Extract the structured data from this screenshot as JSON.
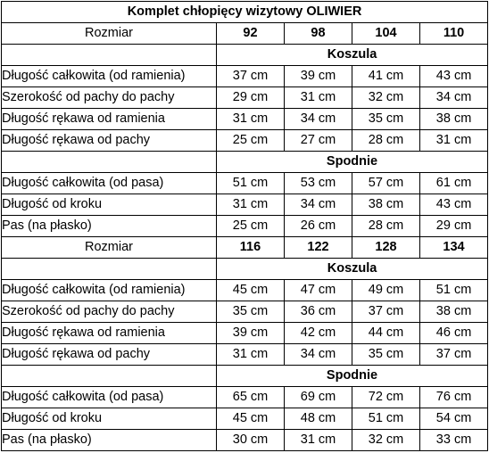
{
  "title": "Komplet chłopięcy wizytowy OLIWIER",
  "blocks": [
    {
      "size_label": "Rozmiar",
      "sizes": [
        "92",
        "98",
        "104",
        "110"
      ],
      "sections": [
        {
          "heading": "Koszula",
          "rows": [
            {
              "label": "Długość całkowita (od ramienia)",
              "values": [
                "37 cm",
                "39 cm",
                "41 cm",
                "43 cm"
              ]
            },
            {
              "label": "Szerokość od pachy do pachy",
              "values": [
                "29 cm",
                "31 cm",
                "32 cm",
                "34 cm"
              ]
            },
            {
              "label": "Długość rękawa od ramienia",
              "values": [
                "31 cm",
                "34 cm",
                "35 cm",
                "38 cm"
              ]
            },
            {
              "label": "Długość rękawa od pachy",
              "values": [
                "25 cm",
                "27 cm",
                "28 cm",
                "31 cm"
              ]
            }
          ]
        },
        {
          "heading": "Spodnie",
          "rows": [
            {
              "label": "Długość całkowita (od pasa)",
              "values": [
                "51 cm",
                "53 cm",
                "57 cm",
                "61 cm"
              ]
            },
            {
              "label": "Długość od kroku",
              "values": [
                "31 cm",
                "34 cm",
                "38 cm",
                "43 cm"
              ]
            },
            {
              "label": "Pas (na płasko)",
              "values": [
                "25 cm",
                "26 cm",
                "28 cm",
                "29 cm"
              ]
            }
          ]
        }
      ]
    },
    {
      "size_label": "Rozmiar",
      "sizes": [
        "116",
        "122",
        "128",
        "134"
      ],
      "sections": [
        {
          "heading": "Koszula",
          "rows": [
            {
              "label": "Długość całkowita (od ramienia)",
              "values": [
                "45 cm",
                "47 cm",
                "49 cm",
                "51 cm"
              ]
            },
            {
              "label": "Szerokość od pachy do pachy",
              "values": [
                "35 cm",
                "36 cm",
                "37 cm",
                "38 cm"
              ]
            },
            {
              "label": "Długość rękawa od ramienia",
              "values": [
                "39 cm",
                "42 cm",
                "44 cm",
                "46 cm"
              ]
            },
            {
              "label": "Długość rękawa od pachy",
              "values": [
                "31 cm",
                "34 cm",
                "35 cm",
                "37 cm"
              ]
            }
          ]
        },
        {
          "heading": "Spodnie",
          "rows": [
            {
              "label": "Długość całkowita (od pasa)",
              "values": [
                "65 cm",
                "69 cm",
                "72 cm",
                "76 cm"
              ]
            },
            {
              "label": "Długość od kroku",
              "values": [
                "45 cm",
                "48 cm",
                "51 cm",
                "54 cm"
              ]
            },
            {
              "label": "Pas (na płasko)",
              "values": [
                "30 cm",
                "31 cm",
                "32 cm",
                "33 cm"
              ]
            }
          ]
        }
      ]
    }
  ]
}
